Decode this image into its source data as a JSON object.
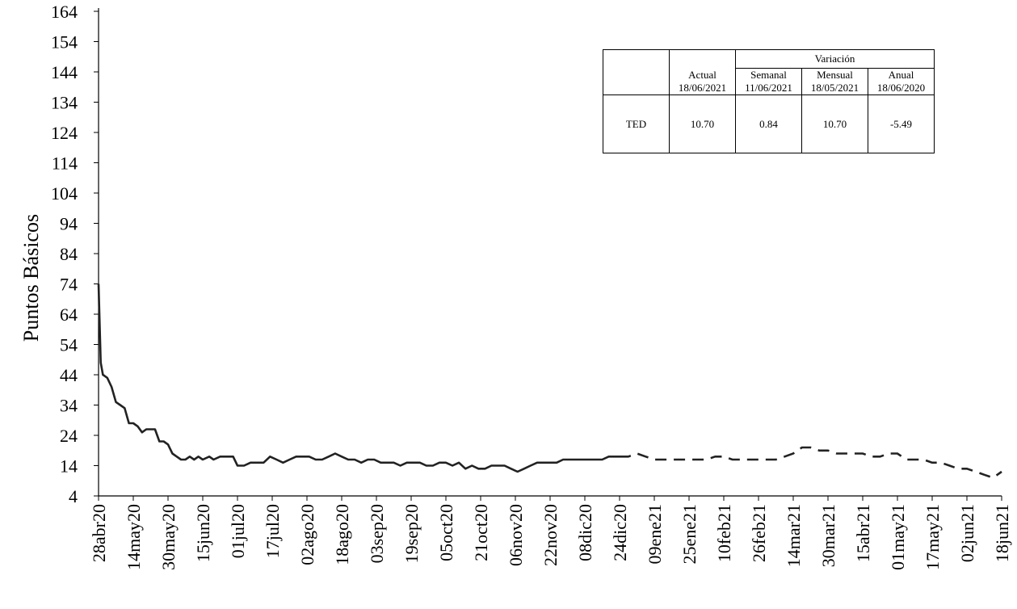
{
  "chart_data": {
    "type": "line",
    "ylabel": "Puntos Básicos",
    "ylim": [
      4,
      164
    ],
    "yticks": [
      "4",
      "14",
      "24",
      "34",
      "44",
      "54",
      "64",
      "74",
      "84",
      "94",
      "104",
      "114",
      "124",
      "134",
      "144",
      "154",
      "164"
    ],
    "xticks": [
      "28abr20",
      "14may20",
      "30may20",
      "15jun20",
      "01jul20",
      "17jul20",
      "02ago20",
      "18ago20",
      "03sep20",
      "19sep20",
      "05oct20",
      "21oct20",
      "06nov20",
      "22nov20",
      "08dic20",
      "24dic20",
      "09ene21",
      "25ene21",
      "10feb21",
      "26feb21",
      "14mar21",
      "30mar21",
      "15abr21",
      "01may21",
      "17may21",
      "02jun21",
      "18jun21"
    ],
    "x_start": "2020-04-28",
    "x_end": "2021-06-18",
    "solid_until": "2020-12-24",
    "series": [
      {
        "values": [
          [
            "2020-04-28",
            74
          ],
          [
            "2020-04-29",
            48
          ],
          [
            "2020-04-30",
            44
          ],
          [
            "2020-05-02",
            43
          ],
          [
            "2020-05-04",
            40
          ],
          [
            "2020-05-06",
            35
          ],
          [
            "2020-05-08",
            34
          ],
          [
            "2020-05-10",
            33
          ],
          [
            "2020-05-12",
            28
          ],
          [
            "2020-05-14",
            28
          ],
          [
            "2020-05-16",
            27
          ],
          [
            "2020-05-18",
            25
          ],
          [
            "2020-05-20",
            26
          ],
          [
            "2020-05-22",
            26
          ],
          [
            "2020-05-24",
            26
          ],
          [
            "2020-05-26",
            22
          ],
          [
            "2020-05-28",
            22
          ],
          [
            "2020-05-30",
            21
          ],
          [
            "2020-06-01",
            18
          ],
          [
            "2020-06-03",
            17
          ],
          [
            "2020-06-05",
            16
          ],
          [
            "2020-06-07",
            16
          ],
          [
            "2020-06-09",
            17
          ],
          [
            "2020-06-11",
            16
          ],
          [
            "2020-06-13",
            17
          ],
          [
            "2020-06-15",
            16
          ],
          [
            "2020-06-18",
            17
          ],
          [
            "2020-06-20",
            16
          ],
          [
            "2020-06-23",
            17
          ],
          [
            "2020-06-26",
            17
          ],
          [
            "2020-06-29",
            17
          ],
          [
            "2020-07-01",
            14
          ],
          [
            "2020-07-04",
            14
          ],
          [
            "2020-07-07",
            15
          ],
          [
            "2020-07-10",
            15
          ],
          [
            "2020-07-13",
            15
          ],
          [
            "2020-07-16",
            17
          ],
          [
            "2020-07-19",
            16
          ],
          [
            "2020-07-22",
            15
          ],
          [
            "2020-07-25",
            16
          ],
          [
            "2020-07-28",
            17
          ],
          [
            "2020-07-31",
            17
          ],
          [
            "2020-08-03",
            17
          ],
          [
            "2020-08-06",
            16
          ],
          [
            "2020-08-09",
            16
          ],
          [
            "2020-08-12",
            17
          ],
          [
            "2020-08-15",
            18
          ],
          [
            "2020-08-18",
            17
          ],
          [
            "2020-08-21",
            16
          ],
          [
            "2020-08-24",
            16
          ],
          [
            "2020-08-27",
            15
          ],
          [
            "2020-08-30",
            16
          ],
          [
            "2020-09-02",
            16
          ],
          [
            "2020-09-05",
            15
          ],
          [
            "2020-09-08",
            15
          ],
          [
            "2020-09-11",
            15
          ],
          [
            "2020-09-14",
            14
          ],
          [
            "2020-09-17",
            15
          ],
          [
            "2020-09-20",
            15
          ],
          [
            "2020-09-23",
            15
          ],
          [
            "2020-09-26",
            14
          ],
          [
            "2020-09-29",
            14
          ],
          [
            "2020-10-02",
            15
          ],
          [
            "2020-10-05",
            15
          ],
          [
            "2020-10-08",
            14
          ],
          [
            "2020-10-11",
            15
          ],
          [
            "2020-10-14",
            13
          ],
          [
            "2020-10-17",
            14
          ],
          [
            "2020-10-20",
            13
          ],
          [
            "2020-10-23",
            13
          ],
          [
            "2020-10-26",
            14
          ],
          [
            "2020-10-29",
            14
          ],
          [
            "2020-11-01",
            14
          ],
          [
            "2020-11-04",
            13
          ],
          [
            "2020-11-07",
            12
          ],
          [
            "2020-11-10",
            13
          ],
          [
            "2020-11-13",
            14
          ],
          [
            "2020-11-16",
            15
          ],
          [
            "2020-11-19",
            15
          ],
          [
            "2020-11-22",
            15
          ],
          [
            "2020-11-25",
            15
          ],
          [
            "2020-11-28",
            16
          ],
          [
            "2020-12-01",
            16
          ],
          [
            "2020-12-04",
            16
          ],
          [
            "2020-12-07",
            16
          ],
          [
            "2020-12-10",
            16
          ],
          [
            "2020-12-13",
            16
          ],
          [
            "2020-12-16",
            16
          ],
          [
            "2020-12-19",
            17
          ],
          [
            "2020-12-22",
            17
          ],
          [
            "2020-12-24",
            17
          ],
          [
            "2020-12-28",
            17
          ],
          [
            "2021-01-01",
            18
          ],
          [
            "2021-01-05",
            17
          ],
          [
            "2021-01-09",
            16
          ],
          [
            "2021-01-13",
            16
          ],
          [
            "2021-01-17",
            16
          ],
          [
            "2021-01-21",
            16
          ],
          [
            "2021-01-25",
            16
          ],
          [
            "2021-01-29",
            16
          ],
          [
            "2021-02-02",
            16
          ],
          [
            "2021-02-06",
            17
          ],
          [
            "2021-02-10",
            17
          ],
          [
            "2021-02-14",
            16
          ],
          [
            "2021-02-18",
            16
          ],
          [
            "2021-02-22",
            16
          ],
          [
            "2021-02-26",
            16
          ],
          [
            "2021-03-02",
            16
          ],
          [
            "2021-03-06",
            16
          ],
          [
            "2021-03-10",
            17
          ],
          [
            "2021-03-14",
            18
          ],
          [
            "2021-03-18",
            20
          ],
          [
            "2021-03-22",
            20
          ],
          [
            "2021-03-26",
            19
          ],
          [
            "2021-03-30",
            19
          ],
          [
            "2021-04-03",
            18
          ],
          [
            "2021-04-07",
            18
          ],
          [
            "2021-04-11",
            18
          ],
          [
            "2021-04-15",
            18
          ],
          [
            "2021-04-19",
            17
          ],
          [
            "2021-04-23",
            17
          ],
          [
            "2021-04-27",
            18
          ],
          [
            "2021-05-01",
            18
          ],
          [
            "2021-05-05",
            16
          ],
          [
            "2021-05-09",
            16
          ],
          [
            "2021-05-13",
            16
          ],
          [
            "2021-05-17",
            15
          ],
          [
            "2021-05-21",
            15
          ],
          [
            "2021-05-25",
            14
          ],
          [
            "2021-05-29",
            13
          ],
          [
            "2021-06-02",
            13
          ],
          [
            "2021-06-06",
            12
          ],
          [
            "2021-06-10",
            11
          ],
          [
            "2021-06-14",
            10
          ],
          [
            "2021-06-18",
            12
          ]
        ]
      }
    ]
  },
  "table": {
    "header_variacion": "Variación",
    "columns": [
      {
        "label": "Actual",
        "date": "18/06/2021"
      },
      {
        "label": "Semanal",
        "date": "11/06/2021"
      },
      {
        "label": "Mensual",
        "date": "18/05/2021"
      },
      {
        "label": "Anual",
        "date": "18/06/2020"
      }
    ],
    "row_label": "TED",
    "values": [
      "10.70",
      "0.84",
      "10.70",
      "-5.49"
    ]
  }
}
